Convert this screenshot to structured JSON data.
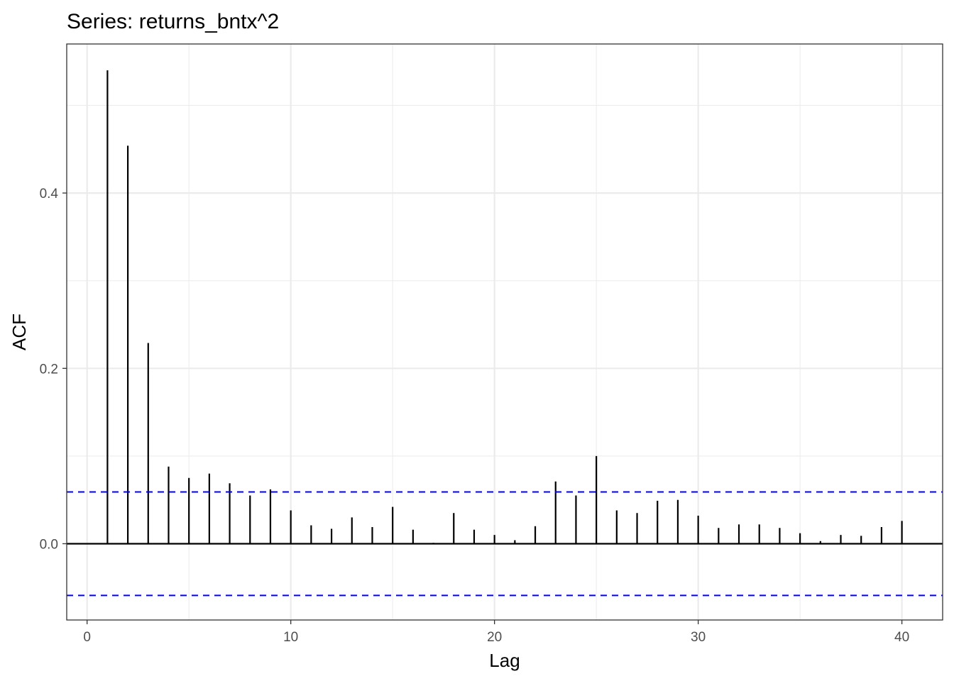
{
  "chart_data": {
    "type": "bar",
    "title": "Series: returns_bntx^2",
    "xlabel": "Lag",
    "ylabel": "ACF",
    "xlim": [
      -1,
      42
    ],
    "ylim": [
      -0.087,
      0.57
    ],
    "x_ticks": [
      "0",
      "10",
      "20",
      "30",
      "40"
    ],
    "y_ticks": [
      "0.0",
      "0.2",
      "0.4"
    ],
    "grid": true,
    "legend": "none",
    "lags": [
      1,
      2,
      3,
      4,
      5,
      6,
      7,
      8,
      9,
      10,
      11,
      12,
      13,
      14,
      15,
      16,
      17,
      18,
      19,
      20,
      21,
      22,
      23,
      24,
      25,
      26,
      27,
      28,
      29,
      30,
      31,
      32,
      33,
      34,
      35,
      36,
      37,
      38,
      39,
      40
    ],
    "values": [
      0.54,
      0.454,
      0.229,
      0.088,
      0.075,
      0.08,
      0.069,
      0.055,
      0.062,
      0.038,
      0.021,
      0.017,
      0.03,
      0.019,
      0.042,
      0.016,
      0.001,
      0.035,
      0.016,
      0.01,
      0.004,
      0.02,
      0.071,
      0.055,
      0.1,
      0.038,
      0.035,
      0.049,
      0.05,
      0.032,
      0.018,
      0.022,
      0.022,
      0.018,
      0.012,
      0.003,
      0.01,
      0.009,
      0.019,
      0.026
    ],
    "confidence_bound": 0.059,
    "colors": {
      "bars": "#000000",
      "confidence": "#0000ff",
      "grid": "#ebebeb",
      "panel_border": "#333333"
    }
  }
}
